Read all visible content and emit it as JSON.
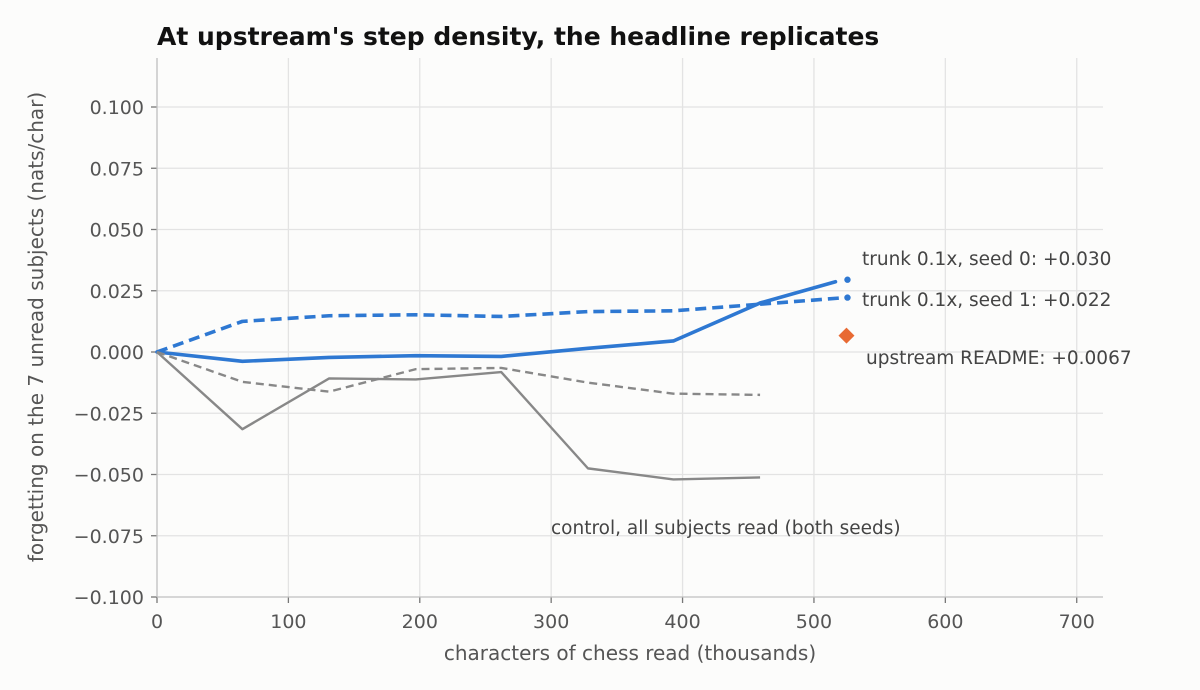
{
  "chart_data": {
    "type": "line",
    "title": "At upstream's step density, the headline replicates",
    "xlabel": "characters of chess read (thousands)",
    "ylabel": "forgetting on the 7 unread subjects (nats/char)",
    "xlim": [
      0,
      720
    ],
    "ylim": [
      -0.1,
      0.12
    ],
    "xticks": [
      0,
      100,
      200,
      300,
      400,
      500,
      600,
      700
    ],
    "yticks": [
      -0.1,
      -0.075,
      -0.05,
      -0.025,
      0.0,
      0.025,
      0.05,
      0.075,
      0.1
    ],
    "xtick_labels": [
      "0",
      "100",
      "200",
      "300",
      "400",
      "500",
      "600",
      "700"
    ],
    "ytick_labels": [
      "−0.100",
      "−0.075",
      "−0.050",
      "−0.025",
      "0.000",
      "0.025",
      "0.050",
      "0.075",
      "0.100"
    ],
    "grid": true,
    "series": [
      {
        "label": "trunk 0.1x, seed 0",
        "color": "#2e78d2",
        "style": "solid",
        "role": "trunk",
        "x": [
          0,
          65,
          131,
          197,
          262,
          328,
          393,
          459,
          524
        ],
        "y": [
          0.0,
          -0.0038,
          -0.0022,
          -0.0015,
          -0.0018,
          0.0015,
          0.0045,
          0.02,
          0.0295
        ]
      },
      {
        "label": "trunk 0.1x, seed 1",
        "color": "#2e78d2",
        "style": "dashed",
        "role": "trunk",
        "x": [
          0,
          65,
          131,
          197,
          262,
          328,
          393,
          459,
          524
        ],
        "y": [
          0.0,
          0.0125,
          0.0148,
          0.0152,
          0.0145,
          0.0165,
          0.0168,
          0.0195,
          0.0222
        ]
      },
      {
        "label": "control seed 0",
        "color": "#888888",
        "style": "solid",
        "role": "control",
        "x": [
          0,
          65,
          131,
          197,
          262,
          328,
          393,
          459
        ],
        "y": [
          0.0,
          -0.0315,
          -0.0108,
          -0.0112,
          -0.0082,
          -0.0475,
          -0.052,
          -0.0512
        ]
      },
      {
        "label": "control seed 1",
        "color": "#888888",
        "style": "dashed",
        "role": "control",
        "x": [
          0,
          65,
          131,
          197,
          262,
          328,
          393,
          459
        ],
        "y": [
          0.0,
          -0.0122,
          -0.0162,
          -0.007,
          -0.0065,
          -0.0125,
          -0.017,
          -0.0175
        ]
      }
    ],
    "markers": [
      {
        "label": "upstream README",
        "x": 524,
        "y": 0.0067,
        "color": "#e86a33",
        "shape": "diamond"
      }
    ],
    "annotations": [
      "trunk 0.1x, seed 0: +0.030",
      "trunk 0.1x, seed 1: +0.022",
      "upstream README: +0.0067",
      "control, all subjects read (both seeds)"
    ]
  }
}
